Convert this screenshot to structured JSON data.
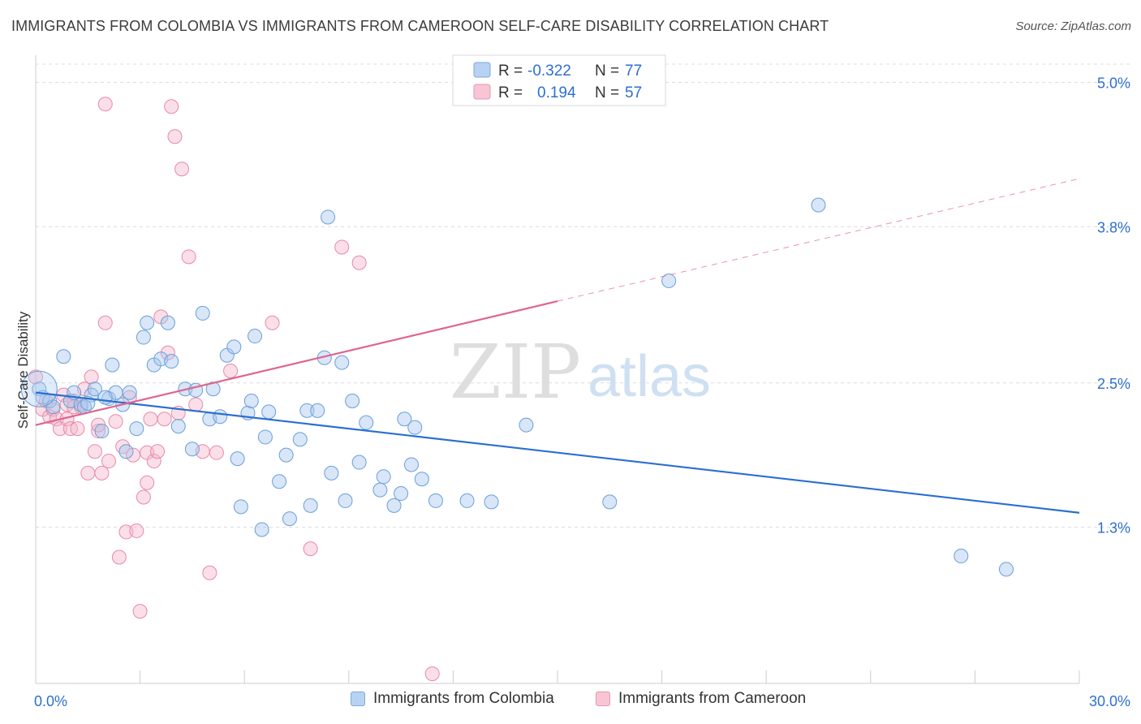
{
  "title": "IMMIGRANTS FROM COLOMBIA VS IMMIGRANTS FROM CAMEROON SELF-CARE DISABILITY CORRELATION CHART",
  "source": "Source: ZipAtlas.com",
  "watermark": {
    "zip": "ZIP",
    "atlas": "atlas"
  },
  "colors": {
    "blue_fill": "#a8c8f0",
    "blue_stroke": "#6a9fd8",
    "blue_line": "#2a6fd0",
    "pink_fill": "#f5b8cb",
    "pink_stroke": "#e889a8",
    "pink_line": "#e0648e",
    "value_text": "#2d6fce",
    "grid": "#dcdcdc"
  },
  "legend_box": [
    {
      "r_label": "R =",
      "r_value": "-0.322",
      "n_label": "N =",
      "n_value": "77"
    },
    {
      "r_label": "R =",
      "r_value": "0.194",
      "n_label": "N =",
      "n_value": "57"
    }
  ],
  "chart_data": {
    "type": "scatter",
    "title": "IMMIGRANTS FROM COLOMBIA VS IMMIGRANTS FROM CAMEROON SELF-CARE DISABILITY CORRELATION CHART",
    "xlabel": "",
    "ylabel": "Self-Care Disability",
    "xlim": [
      0,
      30
    ],
    "ylim": [
      0,
      5.2
    ],
    "x_tick_labels": [
      "0.0%",
      "30.0%"
    ],
    "y_ticks": [
      1.3,
      2.5,
      3.8,
      5.0
    ],
    "y_tick_labels": [
      "1.3%",
      "2.5%",
      "3.8%",
      "5.0%"
    ],
    "grid": true,
    "legend_position": "top-center",
    "series": [
      {
        "name": "Immigrants from Colombia",
        "color": "#a8c8f0",
        "trendline": {
          "x": [
            0,
            30
          ],
          "y": [
            2.42,
            1.42
          ]
        },
        "points": [
          [
            0.1,
            2.45
          ],
          [
            0.2,
            2.38
          ],
          [
            0.4,
            2.35
          ],
          [
            0.5,
            2.3
          ],
          [
            0.8,
            2.72
          ],
          [
            1.0,
            2.35
          ],
          [
            1.1,
            2.42
          ],
          [
            1.3,
            2.32
          ],
          [
            1.4,
            2.3
          ],
          [
            1.6,
            2.4
          ],
          [
            1.7,
            2.45
          ],
          [
            1.9,
            2.1
          ],
          [
            2.1,
            2.37
          ],
          [
            2.2,
            2.65
          ],
          [
            2.3,
            2.42
          ],
          [
            2.5,
            2.32
          ],
          [
            2.6,
            1.93
          ],
          [
            2.7,
            2.42
          ],
          [
            2.9,
            2.12
          ],
          [
            3.1,
            2.88
          ],
          [
            3.2,
            3.0
          ],
          [
            3.4,
            2.65
          ],
          [
            3.6,
            2.7
          ],
          [
            3.8,
            3.0
          ],
          [
            3.9,
            2.68
          ],
          [
            4.1,
            2.14
          ],
          [
            4.3,
            2.45
          ],
          [
            4.5,
            1.95
          ],
          [
            4.6,
            2.44
          ],
          [
            4.8,
            3.08
          ],
          [
            5.0,
            2.2
          ],
          [
            5.3,
            2.22
          ],
          [
            5.5,
            2.73
          ],
          [
            5.7,
            2.8
          ],
          [
            5.8,
            1.87
          ],
          [
            5.9,
            1.47
          ],
          [
            6.1,
            2.25
          ],
          [
            6.2,
            2.35
          ],
          [
            6.3,
            2.89
          ],
          [
            6.5,
            1.28
          ],
          [
            6.6,
            2.05
          ],
          [
            6.7,
            2.26
          ],
          [
            7.0,
            1.68
          ],
          [
            7.2,
            1.9
          ],
          [
            7.3,
            1.37
          ],
          [
            7.6,
            2.03
          ],
          [
            7.8,
            2.27
          ],
          [
            7.9,
            1.48
          ],
          [
            8.1,
            2.27
          ],
          [
            8.3,
            2.71
          ],
          [
            8.4,
            3.88
          ],
          [
            8.5,
            1.75
          ],
          [
            8.9,
            1.52
          ],
          [
            9.1,
            2.35
          ],
          [
            9.3,
            1.84
          ],
          [
            9.5,
            2.17
          ],
          [
            9.9,
            1.61
          ],
          [
            10.0,
            1.72
          ],
          [
            10.3,
            1.48
          ],
          [
            10.5,
            1.58
          ],
          [
            10.6,
            2.2
          ],
          [
            10.8,
            1.82
          ],
          [
            10.9,
            2.13
          ],
          [
            11.1,
            1.7
          ],
          [
            11.5,
            1.52
          ],
          [
            12.4,
            1.52
          ],
          [
            13.1,
            1.51
          ],
          [
            14.1,
            2.15
          ],
          [
            16.5,
            1.51
          ],
          [
            18.2,
            3.35
          ],
          [
            22.5,
            3.98
          ],
          [
            26.6,
            1.06
          ],
          [
            27.9,
            0.95
          ],
          [
            8.8,
            2.67
          ],
          [
            5.1,
            2.45
          ],
          [
            2.0,
            2.38
          ],
          [
            1.5,
            2.33
          ]
        ]
      },
      {
        "name": "Immigrants from Cameroon",
        "color": "#f5b8cb",
        "trendline": {
          "x": [
            0,
            15
          ],
          "y": [
            2.15,
            3.18
          ]
        },
        "trendline_extension": {
          "x": [
            15,
            30
          ],
          "y": [
            3.18,
            4.2
          ]
        },
        "points": [
          [
            0.0,
            2.55
          ],
          [
            0.2,
            2.28
          ],
          [
            0.3,
            2.35
          ],
          [
            0.4,
            2.22
          ],
          [
            0.5,
            2.28
          ],
          [
            0.6,
            2.2
          ],
          [
            0.7,
            2.12
          ],
          [
            0.8,
            2.4
          ],
          [
            0.9,
            2.2
          ],
          [
            1.0,
            2.12
          ],
          [
            1.1,
            2.35
          ],
          [
            1.2,
            2.12
          ],
          [
            1.3,
            2.3
          ],
          [
            1.4,
            2.45
          ],
          [
            1.5,
            1.75
          ],
          [
            1.6,
            2.55
          ],
          [
            1.7,
            1.93
          ],
          [
            1.8,
            2.1
          ],
          [
            1.9,
            1.75
          ],
          [
            2.0,
            3.0
          ],
          [
            2.1,
            1.85
          ],
          [
            2.3,
            2.18
          ],
          [
            2.4,
            1.05
          ],
          [
            2.5,
            1.97
          ],
          [
            2.6,
            1.26
          ],
          [
            2.7,
            2.38
          ],
          [
            2.9,
            1.27
          ],
          [
            3.0,
            0.6
          ],
          [
            3.1,
            1.55
          ],
          [
            3.2,
            1.92
          ],
          [
            3.2,
            1.67
          ],
          [
            3.3,
            2.2
          ],
          [
            3.4,
            1.85
          ],
          [
            3.5,
            1.93
          ],
          [
            3.6,
            3.05
          ],
          [
            3.7,
            2.2
          ],
          [
            3.8,
            2.75
          ],
          [
            3.9,
            4.8
          ],
          [
            4.0,
            4.55
          ],
          [
            4.1,
            2.25
          ],
          [
            4.2,
            4.28
          ],
          [
            4.4,
            3.55
          ],
          [
            4.6,
            2.32
          ],
          [
            4.8,
            1.93
          ],
          [
            5.0,
            0.92
          ],
          [
            5.2,
            1.92
          ],
          [
            5.6,
            2.6
          ],
          [
            6.8,
            3.0
          ],
          [
            7.9,
            1.12
          ],
          [
            8.8,
            3.63
          ],
          [
            9.3,
            3.5
          ],
          [
            11.4,
            0.08
          ],
          [
            2.0,
            4.82
          ],
          [
            0.9,
            2.32
          ],
          [
            1.8,
            2.15
          ],
          [
            1.1,
            2.3
          ],
          [
            2.8,
            1.9
          ]
        ]
      }
    ]
  },
  "bottom_legend": [
    "Immigrants from Colombia",
    "Immigrants from Cameroon"
  ]
}
